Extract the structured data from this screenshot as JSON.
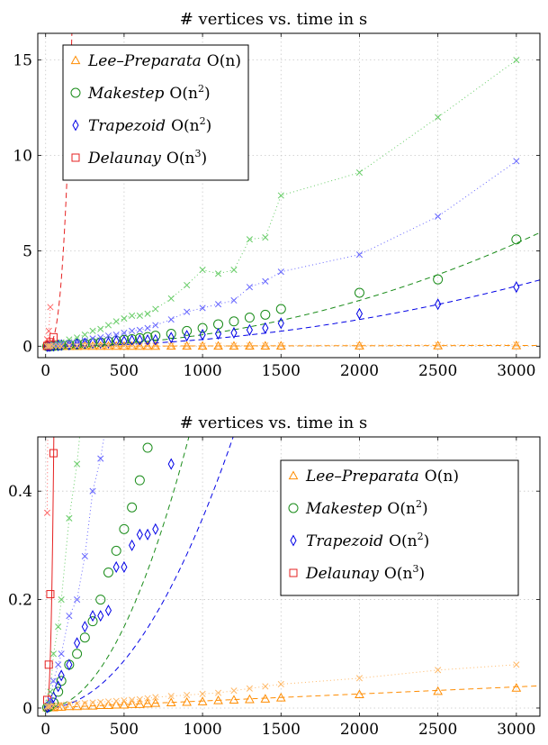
{
  "colors": {
    "lee": "#ff8c00",
    "makestep": "#1a8c1a",
    "trapezoid": "#0000e6",
    "delaunay": "#e62020",
    "lee_light": "#ffb866",
    "makestep_light": "#66cc66",
    "trapezoid_light": "#6666ff",
    "delaunay_light": "#ff6666"
  },
  "legend": [
    {
      "key": "lee",
      "name": "Lee–Preparata",
      "complexity": "O(n)",
      "base": "",
      "exp": ""
    },
    {
      "key": "makestep",
      "name": "Makestep",
      "complexity": "O(n",
      "base": "",
      "exp": "2"
    },
    {
      "key": "trapezoid",
      "name": "Trapezoid",
      "complexity": "O(n",
      "base": "",
      "exp": "2"
    },
    {
      "key": "delaunay",
      "name": "Delaunay",
      "complexity": "O(n",
      "base": "",
      "exp": "3"
    }
  ],
  "chart_data": [
    {
      "type": "scatter",
      "title": "# vertices vs. time in s",
      "xlim": [
        -50,
        3150
      ],
      "ylim": [
        -0.6,
        16.4
      ],
      "xticks": [
        0,
        500,
        1000,
        1500,
        2000,
        2500,
        3000
      ],
      "yticks": [
        0,
        5,
        10,
        15
      ],
      "grid": true,
      "legend_position": "top-left",
      "series": [
        {
          "name": "Lee–Preparata",
          "key": "lee",
          "marker": "triangle",
          "x": [
            10,
            20,
            30,
            50,
            80,
            100,
            150,
            200,
            250,
            300,
            350,
            400,
            450,
            500,
            550,
            600,
            650,
            700,
            800,
            900,
            1000,
            1100,
            1200,
            1300,
            1400,
            1500,
            2000,
            2500,
            3000
          ],
          "y": [
            0.001,
            0.001,
            0.001,
            0.001,
            0.002,
            0.002,
            0.003,
            0.003,
            0.004,
            0.004,
            0.005,
            0.005,
            0.006,
            0.006,
            0.007,
            0.007,
            0.008,
            0.009,
            0.01,
            0.011,
            0.012,
            0.014,
            0.015,
            0.016,
            0.017,
            0.019,
            0.025,
            0.031,
            0.037
          ],
          "fit": [
            0,
            1.3e-05
          ]
        },
        {
          "name": "Makestep",
          "key": "makestep",
          "marker": "circle",
          "x": [
            10,
            20,
            30,
            50,
            80,
            100,
            150,
            200,
            250,
            300,
            350,
            400,
            450,
            500,
            550,
            600,
            650,
            700,
            800,
            900,
            1000,
            1100,
            1200,
            1300,
            1400,
            1500,
            2000,
            2500,
            3000
          ],
          "y": [
            0.001,
            0.002,
            0.005,
            0.01,
            0.03,
            0.05,
            0.08,
            0.1,
            0.13,
            0.16,
            0.2,
            0.25,
            0.29,
            0.33,
            0.37,
            0.42,
            0.48,
            0.55,
            0.65,
            0.8,
            0.95,
            1.15,
            1.3,
            1.5,
            1.65,
            1.95,
            2.8,
            3.5,
            5.6
          ],
          "fit": [
            6e-07
          ]
        },
        {
          "name": "Trapezoid",
          "key": "trapezoid",
          "marker": "diamond",
          "x": [
            10,
            20,
            30,
            50,
            80,
            100,
            150,
            200,
            250,
            300,
            350,
            400,
            450,
            500,
            550,
            600,
            650,
            700,
            800,
            900,
            1000,
            1100,
            1200,
            1300,
            1400,
            1500,
            2000,
            2500,
            3000
          ],
          "y": [
            0.001,
            0.003,
            0.008,
            0.02,
            0.04,
            0.06,
            0.08,
            0.12,
            0.15,
            0.17,
            0.17,
            0.18,
            0.26,
            0.26,
            0.3,
            0.32,
            0.32,
            0.33,
            0.45,
            0.55,
            0.6,
            0.65,
            0.7,
            0.85,
            0.95,
            1.2,
            1.7,
            2.2,
            3.1
          ],
          "fit": [
            3.5e-07
          ]
        },
        {
          "name": "Delaunay",
          "key": "delaunay",
          "marker": "square",
          "x": [
            10,
            20,
            30,
            50
          ],
          "y": [
            0.015,
            0.08,
            0.21,
            0.47
          ],
          "fit": [
            3.5e-06
          ]
        },
        {
          "name": "",
          "key": "makestep",
          "marker": "cross",
          "x": [
            10,
            20,
            30,
            50,
            80,
            100,
            150,
            200,
            250,
            300,
            350,
            400,
            450,
            500,
            550,
            600,
            650,
            700,
            800,
            900,
            1000,
            1100,
            1200,
            1300,
            1400,
            1500,
            2000,
            2500,
            3000
          ],
          "y": [
            0.003,
            0.01,
            0.03,
            0.1,
            0.15,
            0.2,
            0.35,
            0.45,
            0.6,
            0.8,
            0.9,
            1.1,
            1.3,
            1.45,
            1.6,
            1.6,
            1.7,
            1.95,
            2.5,
            3.2,
            4.0,
            3.8,
            4.0,
            5.6,
            5.7,
            7.9,
            9.1,
            12.0,
            15.0
          ]
        },
        {
          "name": "",
          "key": "trapezoid",
          "marker": "cross",
          "x": [
            10,
            20,
            30,
            50,
            80,
            100,
            150,
            200,
            250,
            300,
            350,
            400,
            450,
            500,
            550,
            600,
            650,
            700,
            800,
            900,
            1000,
            1100,
            1200,
            1300,
            1400,
            1500,
            2000,
            2500,
            3000
          ],
          "y": [
            0.002,
            0.006,
            0.015,
            0.05,
            0.08,
            0.1,
            0.17,
            0.2,
            0.28,
            0.4,
            0.46,
            0.55,
            0.6,
            0.7,
            0.8,
            0.85,
            0.95,
            1.1,
            1.4,
            1.8,
            2.0,
            2.2,
            2.4,
            3.1,
            3.4,
            3.9,
            4.8,
            6.8,
            9.7
          ]
        },
        {
          "name": "",
          "key": "delaunay",
          "marker": "cross",
          "x": [
            10,
            20,
            30
          ],
          "y": [
            0.36,
            0.8,
            2.05
          ]
        },
        {
          "name": "",
          "key": "lee",
          "marker": "cross",
          "x": [
            10,
            20,
            30,
            50,
            80,
            100,
            150,
            200,
            250,
            300,
            350,
            400,
            450,
            500,
            550,
            600,
            650,
            700,
            800,
            900,
            1000,
            1100,
            1200,
            1300,
            1400,
            1500,
            2000,
            2500,
            3000
          ],
          "y": [
            0.002,
            0.003,
            0.003,
            0.004,
            0.005,
            0.006,
            0.007,
            0.008,
            0.009,
            0.01,
            0.011,
            0.012,
            0.013,
            0.014,
            0.015,
            0.016,
            0.018,
            0.02,
            0.022,
            0.024,
            0.026,
            0.028,
            0.032,
            0.036,
            0.04,
            0.044,
            0.055,
            0.07,
            0.08
          ]
        }
      ]
    },
    {
      "type": "scatter",
      "title": "# vertices vs. time in s",
      "xlim": [
        -50,
        3150
      ],
      "ylim": [
        -0.015,
        0.5
      ],
      "xticks": [
        0,
        500,
        1000,
        1500,
        2000,
        2500,
        3000
      ],
      "yticks": [
        0,
        0.2,
        0.4
      ],
      "grid": true,
      "legend_position": "top-right"
    }
  ]
}
